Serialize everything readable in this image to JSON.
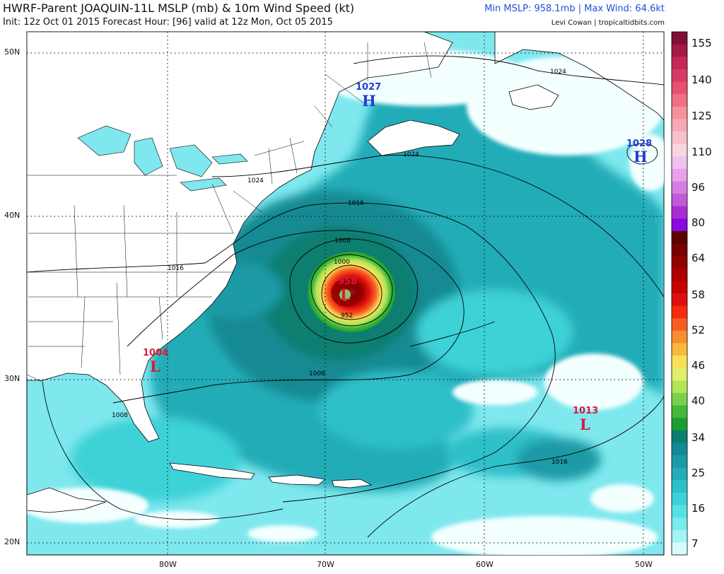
{
  "header": {
    "title": "HWRF-Parent JOAQUIN-11L MSLP (mb) & 10m Wind Speed (kt)",
    "subtitle": "Init: 12z Oct 01 2015   Forecast Hour: [96]   valid at 12z Mon, Oct 05 2015",
    "stats": "Min MSLP: 958.1mb | Max Wind: 64.6kt",
    "credit": "Levi Cowan | tropicaltidbits.com"
  },
  "axes": {
    "latitude_labels": [
      "50N",
      "40N",
      "30N",
      "20N"
    ],
    "longitude_labels": [
      "80W",
      "70W",
      "60W",
      "50W"
    ]
  },
  "colorbar": {
    "labels": [
      "155",
      "140",
      "125",
      "110",
      "96",
      "80",
      "64",
      "58",
      "52",
      "46",
      "40",
      "34",
      "25",
      "16",
      "7"
    ],
    "colors": [
      "#7f0f35",
      "#a31a45",
      "#c42855",
      "#d93a62",
      "#e8506f",
      "#f0707f",
      "#f5909d",
      "#f8a9b6",
      "#f9c0cb",
      "#f8d6df",
      "#f2c2ee",
      "#e9a2ea",
      "#d77fe0",
      "#c159d8",
      "#a72fd0",
      "#8c08e3",
      "#5c0000",
      "#770000",
      "#930000",
      "#ad0000",
      "#c70000",
      "#e00f0f",
      "#f42b0e",
      "#f75d21",
      "#f98d2f",
      "#f9b93c",
      "#f8e15a",
      "#dfef6a",
      "#b3e45a",
      "#7bd14c",
      "#44b93a",
      "#1a9f32",
      "#0c7e70",
      "#138a93",
      "#1b9aa6",
      "#24acb8",
      "#2ec0c9",
      "#3dd2d7",
      "#55e2e2",
      "#76ecec",
      "#a3f4f4",
      "#d7fbfb"
    ]
  },
  "systems": [
    {
      "type": "H",
      "pressure": "1027",
      "color": "#1f3fd6"
    },
    {
      "type": "H",
      "pressure": "1028",
      "color": "#1f3fd6"
    },
    {
      "type": "L",
      "pressure": "1004",
      "color": "#d81a3a"
    },
    {
      "type": "L",
      "pressure": "1013",
      "color": "#d81a3a"
    },
    {
      "type": "L",
      "pressure": "958",
      "color": "#d81a3a"
    }
  ],
  "isobar_labels": [
    "1024",
    "1024",
    "1024",
    "1016",
    "1016",
    "1016",
    "1008",
    "1008",
    "1008",
    "1000",
    "952"
  ],
  "hurricane": {
    "name": "JOAQUIN-11L",
    "min_mslp_mb": 958.1,
    "max_wind_kt": 64.6
  }
}
